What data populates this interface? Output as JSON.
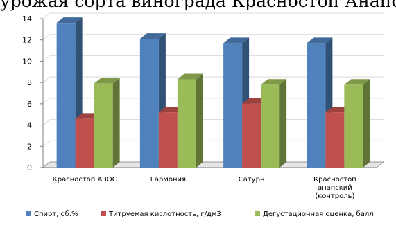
{
  "page_fragment_text": "урожая сорта винограда Красностоп Анапский",
  "colors": {
    "spirit": "#4F81BD",
    "acidity": "#C0504D",
    "tasting": "#9BBB59",
    "grid": "#d9d9d9",
    "axis": "#7f7f7f",
    "floor": "#e5e5e5"
  },
  "chart_data": {
    "type": "bar",
    "title": "",
    "xlabel": "",
    "ylabel": "",
    "ylim": [
      0,
      14
    ],
    "yticks": [
      0,
      2,
      4,
      6,
      8,
      10,
      12,
      14
    ],
    "grid": true,
    "legend_position": "bottom",
    "categories": [
      [
        "Красностоп АЗОС"
      ],
      [
        "Гармония"
      ],
      [
        "Сатурн"
      ],
      [
        "Красностоп",
        "анапский",
        "(контроль)"
      ]
    ],
    "series": [
      {
        "name": "Спирт, об.%",
        "values": [
          13.6,
          12.1,
          11.7,
          11.7
        ]
      },
      {
        "name": "Титруемая кислотность, г/дм3",
        "values": [
          4.6,
          5.2,
          6.0,
          5.2
        ]
      },
      {
        "name": "Дегустационная оценка, балл",
        "values": [
          7.9,
          8.3,
          7.8,
          7.8
        ]
      }
    ]
  }
}
